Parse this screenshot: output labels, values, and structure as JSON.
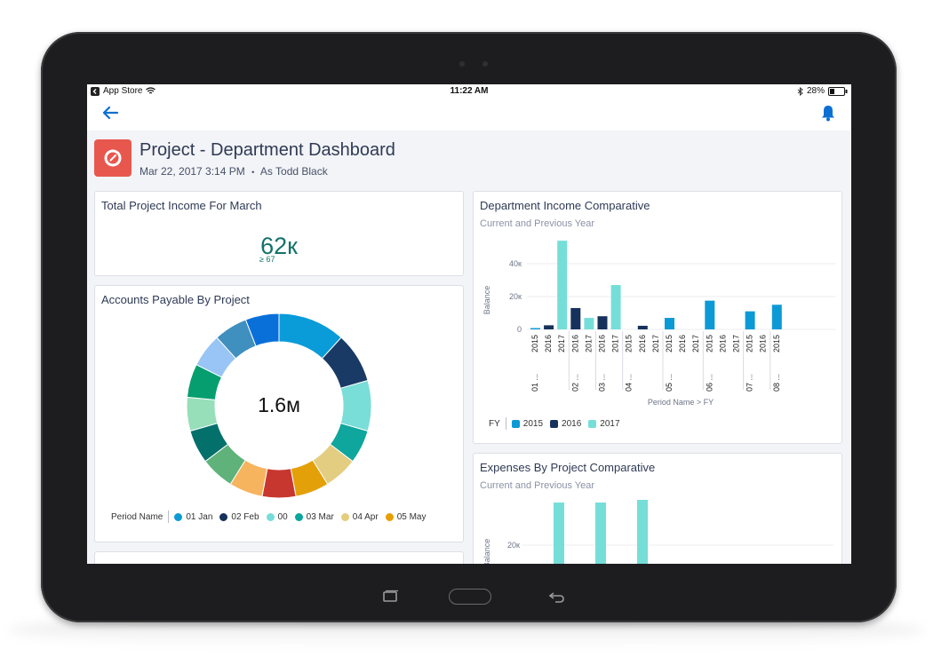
{
  "status_bar": {
    "carrier": "App Store",
    "time": "11:22 AM",
    "battery": "28%"
  },
  "dashboard": {
    "title": "Project - Department Dashboard",
    "date": "Mar 22, 2017 3:14 PM",
    "separator": "•",
    "as_user": "As Todd Black"
  },
  "cards": {
    "income": {
      "title": "Total Project Income For March",
      "value": "62к",
      "detail": "≥ 67"
    },
    "accounts": {
      "title": "Accounts Payable By Project",
      "total": "1.6м",
      "legend_title": "Period Name",
      "legend": [
        {
          "label": "01 Jan",
          "color": "#0c9ad6"
        },
        {
          "label": "02 Feb",
          "color": "#16325c"
        },
        {
          "label": "00",
          "color": "#76ded9"
        },
        {
          "label": "03 Mar",
          "color": "#08a69e"
        },
        {
          "label": "04 Apr",
          "color": "#e2ce7d"
        },
        {
          "label": "05 May",
          "color": "#e69f00"
        }
      ]
    },
    "dept": {
      "title": "Department Income Comparative",
      "subtitle": "Current and Previous Year",
      "ylabel": "Balance",
      "xlabel": "Period Name > FY",
      "legend_title": "FY",
      "legend": [
        {
          "label": "2015",
          "color": "#0c9ad6"
        },
        {
          "label": "2016",
          "color": "#16325c"
        },
        {
          "label": "2017",
          "color": "#76ded9"
        }
      ]
    },
    "expenses": {
      "title": "Expenses By Project Comparative",
      "subtitle": "Current and Previous Year",
      "ylabel": "Balance",
      "ytick": "20к"
    }
  },
  "chart_data": [
    {
      "type": "pie",
      "title": "Accounts Payable By Project",
      "center_label": "1.6м",
      "slice_colors": [
        "#0a9bd9",
        "#1a3a66",
        "#79ddd8",
        "#0ea69d",
        "#e3cd81",
        "#e3a008",
        "#c8372f",
        "#f7b45e",
        "#5fb27a",
        "#03706c",
        "#96dfb9",
        "#069e6e",
        "#98c5f5",
        "#3f8fbf",
        "#0a70d9"
      ],
      "values": [
        12,
        9,
        9,
        6,
        6,
        6,
        6,
        6,
        6,
        6,
        6,
        6,
        6,
        6,
        6
      ]
    },
    {
      "type": "bar",
      "title": "Department Income Comparative",
      "xlabel": "Period Name > FY",
      "ylabel": "Balance",
      "yticks": [
        "40к",
        "20к",
        "0"
      ],
      "ylim": [
        0,
        60000
      ],
      "groups": [
        {
          "label": "01 ...",
          "bars": [
            {
              "fy": "2015",
              "value": 800
            },
            {
              "fy": "2016",
              "value": 2500
            },
            {
              "fy": "2017",
              "value": 54000
            }
          ]
        },
        {
          "label": "02 ...",
          "bars": [
            {
              "fy": "2016",
              "value": 13000
            },
            {
              "fy": "2017",
              "value": 7000
            }
          ]
        },
        {
          "label": "03 ...",
          "bars": [
            {
              "fy": "2016",
              "value": 8000
            },
            {
              "fy": "2017",
              "value": 27000
            }
          ]
        },
        {
          "label": "04 ...",
          "bars": [
            {
              "fy": "2015",
              "value": 0
            },
            {
              "fy": "2016",
              "value": 2200
            },
            {
              "fy": "2017",
              "value": 0
            }
          ]
        },
        {
          "label": "05 ...",
          "bars": [
            {
              "fy": "2015",
              "value": 7000
            },
            {
              "fy": "2016",
              "value": 0
            },
            {
              "fy": "2017",
              "value": 0
            }
          ]
        },
        {
          "label": "06 ...",
          "bars": [
            {
              "fy": "2015",
              "value": 17500
            },
            {
              "fy": "2016",
              "value": 0
            },
            {
              "fy": "2017",
              "value": 0
            }
          ]
        },
        {
          "label": "07 ...",
          "bars": [
            {
              "fy": "2015",
              "value": 11000
            },
            {
              "fy": "2016",
              "value": 0
            }
          ]
        },
        {
          "label": "08 ...",
          "bars": [
            {
              "fy": "2015",
              "value": 15000
            }
          ]
        }
      ],
      "series_colors": {
        "2015": "#0c9ad6",
        "2016": "#16325c",
        "2017": "#76ded9"
      }
    },
    {
      "type": "bar",
      "title": "Expenses By Project Comparative",
      "ylabel": "Balance",
      "yticks": [
        "20к"
      ],
      "partially_visible": true
    }
  ]
}
